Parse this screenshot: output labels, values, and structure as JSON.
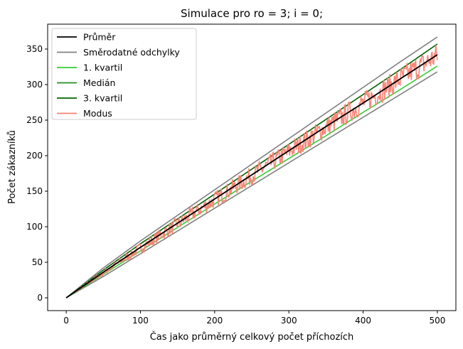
{
  "chart_data": {
    "type": "line",
    "title": "Simulace pro ro = 3; i = 0;",
    "xlabel": "Čas jako průměrný celkový počet příchozích",
    "ylabel": "Počet zákazníků",
    "xlim": [
      -25,
      525
    ],
    "ylim": [
      -18,
      385
    ],
    "xticks": [
      0,
      100,
      200,
      300,
      400,
      500
    ],
    "yticks": [
      0,
      50,
      100,
      150,
      200,
      250,
      300,
      350
    ],
    "legend_position": "top-left",
    "grid": false,
    "series": [
      {
        "name": "Průměr",
        "color": "#000000",
        "x": [
          0,
          50,
          100,
          150,
          200,
          250,
          300,
          350,
          400,
          450,
          500
        ],
        "y": [
          0,
          36,
          71,
          105,
          139,
          173,
          207,
          241,
          274,
          308,
          342
        ]
      },
      {
        "name": "Směrodatné odchylky",
        "color": "#808080",
        "x": [
          0,
          50,
          100,
          150,
          200,
          250,
          300,
          350,
          400,
          450,
          500
        ],
        "y": [
          0,
          42,
          80,
          116,
          152,
          188,
          224,
          260,
          296,
          332,
          367
        ]
      },
      {
        "name": "Směrodatné odchylky",
        "color": "#808080",
        "x": [
          0,
          50,
          100,
          150,
          200,
          250,
          300,
          350,
          400,
          450,
          500
        ],
        "y": [
          0,
          30,
          62,
          94,
          126,
          158,
          190,
          222,
          254,
          286,
          318
        ]
      },
      {
        "name": "1. kvartil",
        "color": "#32cd32",
        "x": [
          0,
          50,
          100,
          150,
          200,
          250,
          300,
          350,
          400,
          450,
          500
        ],
        "y": [
          0,
          33,
          66,
          99,
          132,
          164,
          196,
          228,
          261,
          293,
          326
        ]
      },
      {
        "name": "Medián",
        "color": "#228b22",
        "x": [
          0,
          50,
          100,
          150,
          200,
          250,
          300,
          350,
          400,
          450,
          500
        ],
        "y": [
          0,
          36,
          71,
          105,
          139,
          173,
          207,
          241,
          274,
          308,
          342
        ]
      },
      {
        "name": "3. kvartil",
        "color": "#006400",
        "x": [
          0,
          50,
          100,
          150,
          200,
          250,
          300,
          350,
          400,
          450,
          500
        ],
        "y": [
          0,
          39,
          76,
          111,
          146,
          181,
          216,
          251,
          286,
          321,
          357
        ]
      },
      {
        "name": "Modus",
        "color": "#fa8072",
        "x": [
          0,
          50,
          100,
          150,
          200,
          250,
          300,
          350,
          400,
          450,
          500
        ],
        "y": [
          0,
          35,
          70,
          104,
          138,
          172,
          206,
          240,
          274,
          308,
          341
        ],
        "spread": [
          0,
          4,
          8,
          10,
          12,
          13,
          14,
          15,
          16,
          17,
          18
        ]
      }
    ],
    "legend": [
      "Průměr",
      "Směrodatné odchylky",
      "1. kvartil",
      "Medián",
      "3. kvartil",
      "Modus"
    ]
  }
}
